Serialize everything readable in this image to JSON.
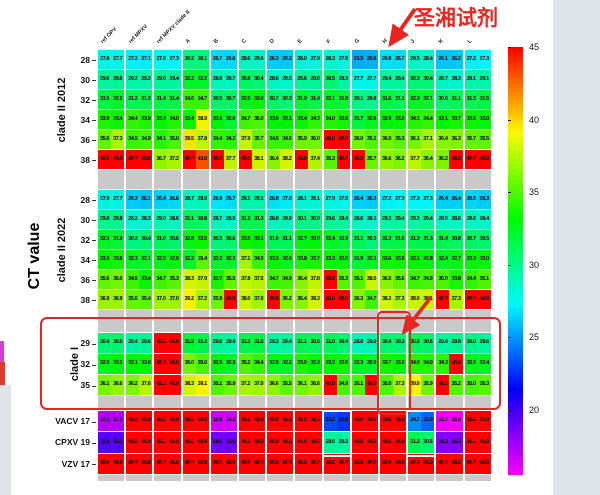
{
  "annotations": {
    "reagent_label": "圣湘试剂",
    "accent_color": "#e8251f",
    "clade_I_box": "red rectangle around clade I rows",
    "column_H_box": "red rectangle around column H in clade I rows"
  },
  "chart_data": {
    "type": "heatmap",
    "value_label": "CT value",
    "replicates_per_column": 2,
    "columns": [
      "ref OPV",
      "ref MPXV",
      "ref MPXV clade II",
      "A",
      "B",
      "C",
      "D",
      "E",
      "F",
      "G",
      "H",
      "J",
      "K",
      "L"
    ],
    "white_box_columns": [
      "F",
      "J"
    ],
    "colorbar": {
      "min": 15.5,
      "max": 45,
      "ticks": [
        "45",
        "40",
        "35",
        "30",
        "25",
        "20"
      ],
      "scheme": "red(45) → yellow → green → cyan → blue → magenta(15.5)"
    },
    "row_groups": [
      {
        "label": "clade II 2012",
        "rows": [
          {
            "label": "28",
            "values": [
              "27.8",
              "27.7",
              "27.2",
              "27.1",
              "27.5",
              "27.3",
              "30.2",
              "30.1",
              "26.7",
              "26.6",
              "28.6",
              "28.6",
              "26.3",
              "26.2",
              "28.0",
              "27.9",
              "28.3",
              "27.8",
              "25.5",
              "25.6",
              "26.8",
              "26.7",
              "28.5",
              "28.4",
              "26.1",
              "26.2",
              "27.2",
              "27.3"
            ]
          },
          {
            "label": "30",
            "values": [
              "29.6",
              "29.6",
              "29.2",
              "29.2",
              "29.6",
              "29.4",
              "32.2",
              "32.2",
              "28.8",
              "28.7",
              "30.8",
              "30.4",
              "28.6",
              "28.5",
              "29.6",
              "29.6",
              "30.5",
              "29.3",
              "27.7",
              "27.7",
              "29.4",
              "29.4",
              "30.3",
              "30.4",
              "28.7",
              "28.3",
              "29.1",
              "29.1"
            ]
          },
          {
            "label": "32",
            "values": [
              "31.5",
              "32.2",
              "31.2",
              "31.2",
              "31.4",
              "31.4",
              "34.6",
              "34.7",
              "30.5",
              "30.7",
              "32.5",
              "33.0",
              "30.7",
              "30.3",
              "31.9",
              "31.4",
              "32.1",
              "31.8",
              "30.1",
              "29.8",
              "31.6",
              "31.1",
              "32.3",
              "32.1",
              "30.6",
              "31.1",
              "31.2",
              "31.5"
            ]
          },
          {
            "label": "34",
            "values": [
              "33.9",
              "33.4",
              "34.4",
              "33.9",
              "33.3",
              "34.0",
              "33.4",
              "38.9",
              "33.1",
              "32.0",
              "34.7",
              "35.0",
              "33.0",
              "33.1",
              "33.4",
              "34.3",
              "34.0",
              "33.6",
              "31.7",
              "32.6",
              "32.9",
              "33.2",
              "34.1",
              "34.4",
              "33.1",
              "33.7",
              "33.5",
              "33.0"
            ]
          },
          {
            "label": "36",
            "values": [
              "35.6",
              "37.3",
              "34.5",
              "34.9",
              "34.1",
              "35.0",
              "39.5",
              "37.8",
              "34.4",
              "34.2",
              "37.9",
              "35.7",
              "34.5",
              "34.6",
              "35.9",
              "36.0",
              "45.0",
              "45.0",
              "36.0",
              "35.1",
              "36.0",
              "35.3",
              "36.1",
              "37.1",
              "36.4",
              "36.3",
              "35.7",
              "35.5"
            ]
          },
          {
            "label": "38",
            "values": [
              "45.0",
              "45.0",
              "45.0",
              "45.0",
              "36.7",
              "37.2",
              "45.0",
              "43.0",
              "45.0",
              "37.7",
              "45.0",
              "38.1",
              "36.4",
              "38.2",
              "45.0",
              "37.4",
              "35.3",
              "45.0",
              "45.0",
              "35.7",
              "36.6",
              "36.2",
              "37.7",
              "36.4",
              "36.2",
              "45.0",
              "45.0",
              "45.0"
            ]
          }
        ]
      },
      {
        "label": "clade II 2022",
        "rows": [
          {
            "label": "28",
            "values": [
              "27.9",
              "27.7",
              "26.3",
              "26.1",
              "26.4",
              "26.6",
              "28.7",
              "28.9",
              "26.9",
              "26.7",
              "29.1",
              "29.1",
              "26.8",
              "27.0",
              "28.1",
              "28.1",
              "27.9",
              "27.5",
              "26.4",
              "26.3",
              "27.2",
              "27.3",
              "27.3",
              "27.3",
              "26.4",
              "26.4",
              "26.5",
              "26.3"
            ]
          },
          {
            "label": "30",
            "values": [
              "29.8",
              "29.8",
              "28.2",
              "28.3",
              "29.0",
              "28.6",
              "31.1",
              "30.8",
              "28.7",
              "28.5",
              "31.2",
              "31.3",
              "28.8",
              "28.9",
              "30.1",
              "30.0",
              "29.6",
              "29.4",
              "28.6",
              "28.3",
              "29.2",
              "29.4",
              "29.2",
              "29.4",
              "28.5",
              "28.6",
              "28.6",
              "28.4"
            ]
          },
          {
            "label": "32",
            "values": [
              "32.3",
              "31.9",
              "30.2",
              "30.4",
              "31.0",
              "30.6",
              "32.8",
              "33.5",
              "30.3",
              "30.6",
              "33.5",
              "33.1",
              "31.0",
              "31.1",
              "32.7",
              "33.0",
              "32.4",
              "31.9",
              "31.1",
              "30.3",
              "31.3",
              "31.5",
              "31.3",
              "31.3",
              "31.4",
              "30.8",
              "30.7",
              "30.5"
            ]
          },
          {
            "label": "34",
            "values": [
              "33.3",
              "33.6",
              "32.3",
              "32.1",
              "32.5",
              "32.9",
              "32.2",
              "35.4",
              "32.2",
              "32.2",
              "37.1",
              "34.5",
              "33.3",
              "32.6",
              "33.8",
              "33.7",
              "33.3",
              "33.0",
              "31.9",
              "32.3",
              "33.6",
              "33.5",
              "33.1",
              "32.8",
              "32.4",
              "32.7",
              "33.3",
              "33.0"
            ]
          },
          {
            "label": "36",
            "values": [
              "35.6",
              "36.0",
              "34.6",
              "33.4",
              "34.7",
              "35.3",
              "38.3",
              "37.9",
              "33.7",
              "35.5",
              "37.8",
              "37.5",
              "34.7",
              "34.9",
              "36.4",
              "37.8",
              "45.0",
              "35.3",
              "35.1",
              "38.0",
              "36.5",
              "35.6",
              "34.7",
              "34.9",
              "35.0",
              "33.8",
              "34.4",
              "35.1"
            ]
          },
          {
            "label": "38",
            "values": [
              "36.9",
              "36.9",
              "35.6",
              "35.4",
              "37.0",
              "37.0",
              "39.2",
              "37.2",
              "35.9",
              "45.0",
              "38.0",
              "37.0",
              "45.0",
              "36.2",
              "36.4",
              "38.3",
              "45.0",
              "45.0",
              "36.3",
              "34.7",
              "38.2",
              "37.3",
              "38.0",
              "38.1",
              "45.0",
              "37.3",
              "45.0",
              "45.0"
            ]
          }
        ]
      },
      {
        "label": "clade I",
        "rows": [
          {
            "label": "29",
            "values": [
              "30.4",
              "30.5",
              "29.4",
              "29.6",
              "45.0",
              "45.0",
              "31.9",
              "31.3",
              "29.6",
              "29.4",
              "31.3",
              "31.5",
              "29.3",
              "29.4",
              "31.1",
              "30.9",
              "31.0",
              "30.4",
              "28.8",
              "29.0",
              "30.4",
              "30.3",
              "30.9",
              "30.6",
              "29.4",
              "29.8",
              "30.0",
              "29.6"
            ]
          },
          {
            "label": "32",
            "values": [
              "32.5",
              "33.1",
              "33.1",
              "33.0",
              "45.0",
              "45.0",
              "36.0",
              "35.0",
              "32.9",
              "32.3",
              "35.2",
              "34.4",
              "32.5",
              "32.2",
              "33.9",
              "33.2",
              "33.2",
              "33.6",
              "32.3",
              "32.0",
              "33.7",
              "33.3",
              "34.0",
              "34.0",
              "34.3",
              "45.0",
              "32.5",
              "32.4"
            ]
          },
          {
            "label": "35",
            "values": [
              "36.1",
              "36.6",
              "36.2",
              "37.6",
              "45.0",
              "45.0",
              "38.3",
              "39.1",
              "35.1",
              "35.9",
              "37.2",
              "37.0",
              "36.6",
              "35.5",
              "36.1",
              "36.6",
              "45.0",
              "34.9",
              "35.1",
              "45.0",
              "35.0",
              "37.3",
              "39.0",
              "35.9",
              "45.0",
              "35.2",
              "35.0",
              "35.3"
            ]
          }
        ]
      },
      {
        "label": "",
        "rows": [
          {
            "label": "VACV 17",
            "values": [
              "17.1",
              "17.1",
              "45.0",
              "45.0",
              "45.0",
              "45.0",
              "45.0",
              "45.0",
              "16.5",
              "16.3",
              "45.0",
              "45.0",
              "45.0",
              "45.0",
              "45.0",
              "45.0",
              "23.2",
              "22.8",
              "45.0",
              "45.0",
              "45.0",
              "45.0",
              "24.7",
              "23.9",
              "15.7",
              "15.5",
              "45.0",
              "45.0"
            ]
          },
          {
            "label": "CPXV 19",
            "values": [
              "19.3",
              "19.2",
              "45.0",
              "45.0",
              "45.0",
              "45.0",
              "45.0",
              "45.0",
              "18.6",
              "18.6",
              "45.0",
              "45.0",
              "45.0",
              "45.0",
              "45.0",
              "45.0",
              "29.6",
              "29.3",
              "45.0",
              "45.0",
              "45.0",
              "45.0",
              "31.3",
              "30.5",
              "18.3",
              "18.3",
              "45.0",
              "45.0"
            ]
          },
          {
            "label": "VZV 17",
            "values": [
              "45.0",
              "45.0",
              "45.0",
              "45.0",
              "45.0",
              "45.0",
              "45.0",
              "45.0",
              "45.0",
              "45.0",
              "45.0",
              "45.0",
              "45.0",
              "45.0",
              "45.0",
              "45.0",
              "45.0",
              "45.0",
              "45.0",
              "45.0",
              "45.0",
              "45.0",
              "45.0",
              "45.0",
              "45.0",
              "45.0",
              "45.0",
              "45.0"
            ]
          }
        ]
      }
    ]
  }
}
